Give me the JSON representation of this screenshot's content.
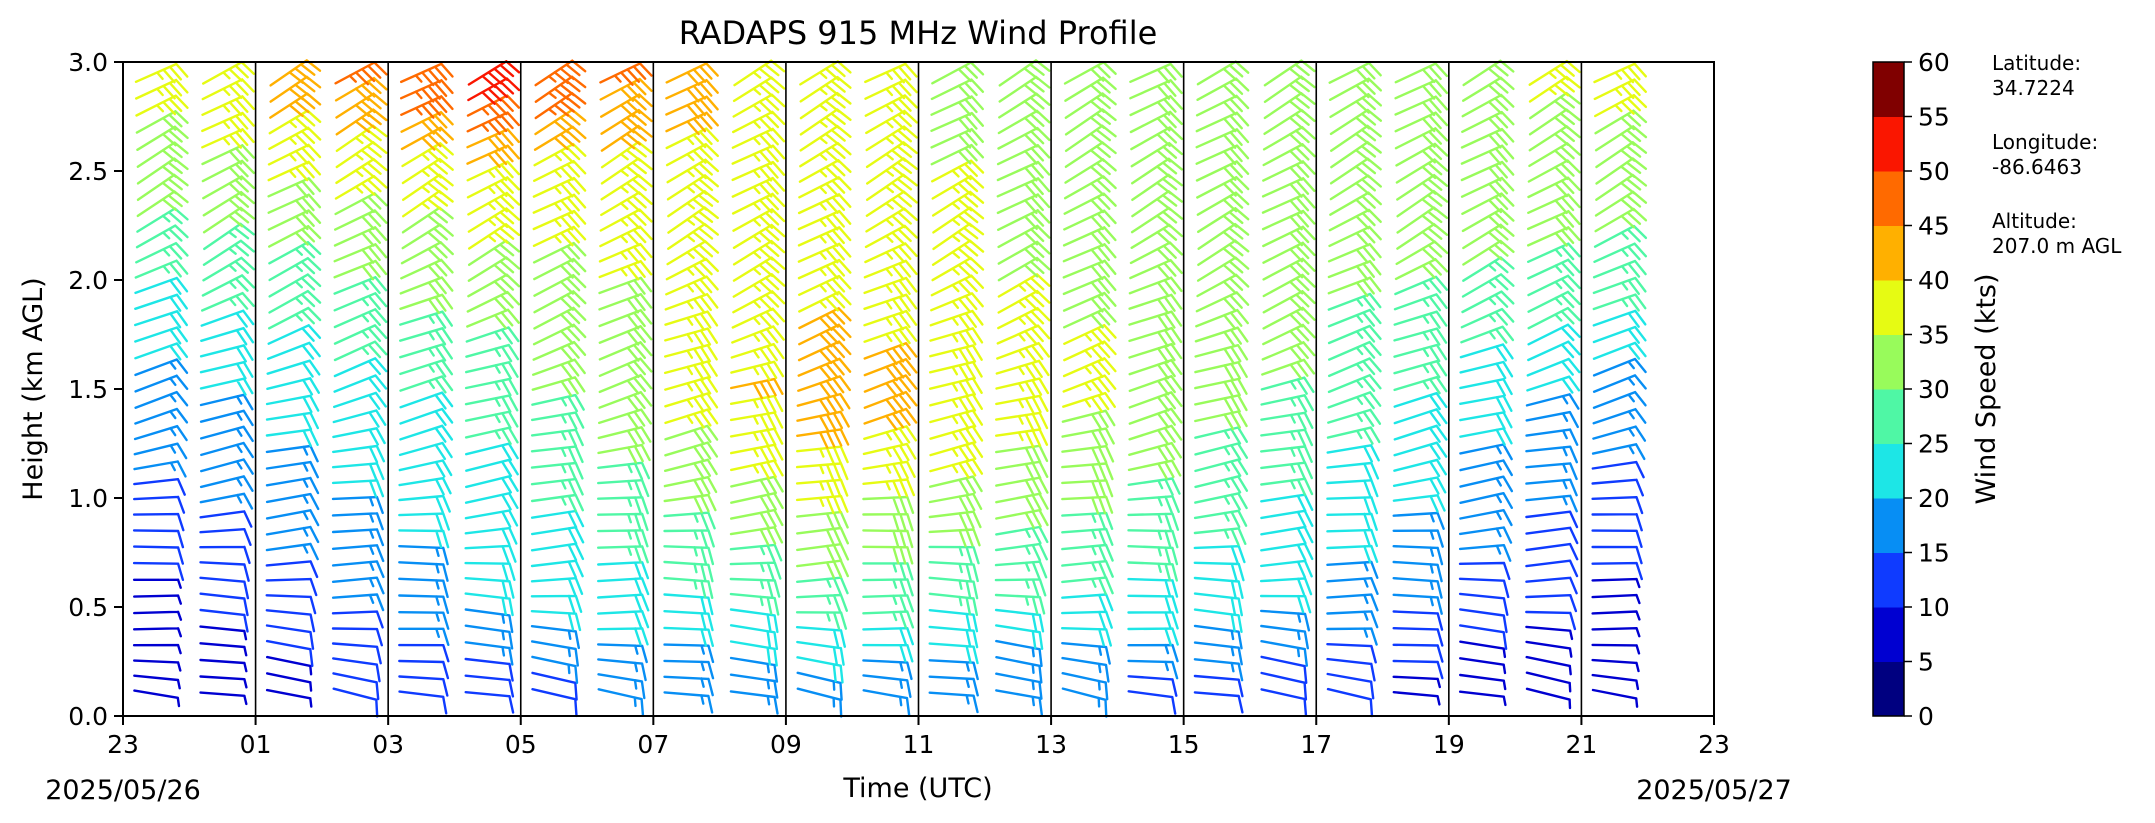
{
  "chart_data": {
    "type": "wind_barb_profile",
    "title": "RADAPS 915 MHz Wind Profile",
    "xlabel": "Time (UTC)",
    "ylabel": "Height (km AGL)",
    "x_tick_labels": [
      "23",
      "01",
      "03",
      "05",
      "07",
      "09",
      "11",
      "13",
      "15",
      "17",
      "19",
      "21",
      "23"
    ],
    "start_date": "2025/05/26",
    "end_date": "2025/05/27",
    "y_ticks": [
      "0.0",
      "0.5",
      "1.0",
      "1.5",
      "2.0",
      "2.5",
      "3.0"
    ],
    "ylim": [
      0,
      3
    ],
    "colorbar": {
      "label": "Wind Speed (kts)",
      "ticks": [
        "0",
        "5",
        "10",
        "15",
        "20",
        "25",
        "30",
        "35",
        "40",
        "45",
        "50",
        "55",
        "60"
      ],
      "colors": [
        "#000080",
        "#0000d1",
        "#0f3bff",
        "#078ef4",
        "#1de6e6",
        "#4ff7a5",
        "#98fb5b",
        "#e6fb13",
        "#ffb000",
        "#ff6a00",
        "#fa1600",
        "#800000"
      ]
    },
    "site_info": [
      {
        "label": "Latitude:",
        "value": "34.7224"
      },
      {
        "label": "Longitude:",
        "value": "-86.6463"
      },
      {
        "label": "Altitude:",
        "value": "207.0 m AGL"
      }
    ],
    "profile_times_utc": [
      "23:30",
      "00:30",
      "01:30",
      "02:30",
      "03:30",
      "04:30",
      "05:30",
      "06:30",
      "07:30",
      "08:30",
      "09:30",
      "10:30",
      "11:30",
      "12:30",
      "13:30",
      "14:30",
      "15:30",
      "16:30",
      "17:30",
      "18:30",
      "19:30",
      "20:30",
      "21:30"
    ],
    "representative_speed_profiles_kts": [
      {
        "time": "23:30",
        "heights_km": [
          0.2,
          0.5,
          1.0,
          1.5,
          2.0,
          2.5,
          3.0
        ],
        "speeds": [
          6,
          8,
          14,
          18,
          25,
          33,
          37
        ]
      },
      {
        "time": "04:30",
        "heights_km": [
          0.2,
          0.5,
          1.0,
          1.5,
          2.0,
          2.5,
          3.0
        ],
        "speeds": [
          13,
          20,
          23,
          27,
          33,
          38,
          55
        ]
      },
      {
        "time": "09:30",
        "heights_km": [
          0.2,
          0.5,
          1.0,
          1.5,
          2.0,
          2.5,
          3.0
        ],
        "speeds": [
          19,
          27,
          36,
          44,
          38,
          37,
          36
        ]
      },
      {
        "time": "15:30",
        "heights_km": [
          0.2,
          0.5,
          1.0,
          1.5,
          2.0,
          2.5,
          3.0
        ],
        "speeds": [
          14,
          22,
          27,
          32,
          32,
          31,
          31
        ]
      },
      {
        "time": "21:30",
        "heights_km": [
          0.2,
          0.5,
          1.0,
          1.5,
          2.0,
          2.5,
          3.0
        ],
        "speeds": [
          5,
          8,
          13,
          18,
          28,
          33,
          37
        ]
      }
    ]
  }
}
